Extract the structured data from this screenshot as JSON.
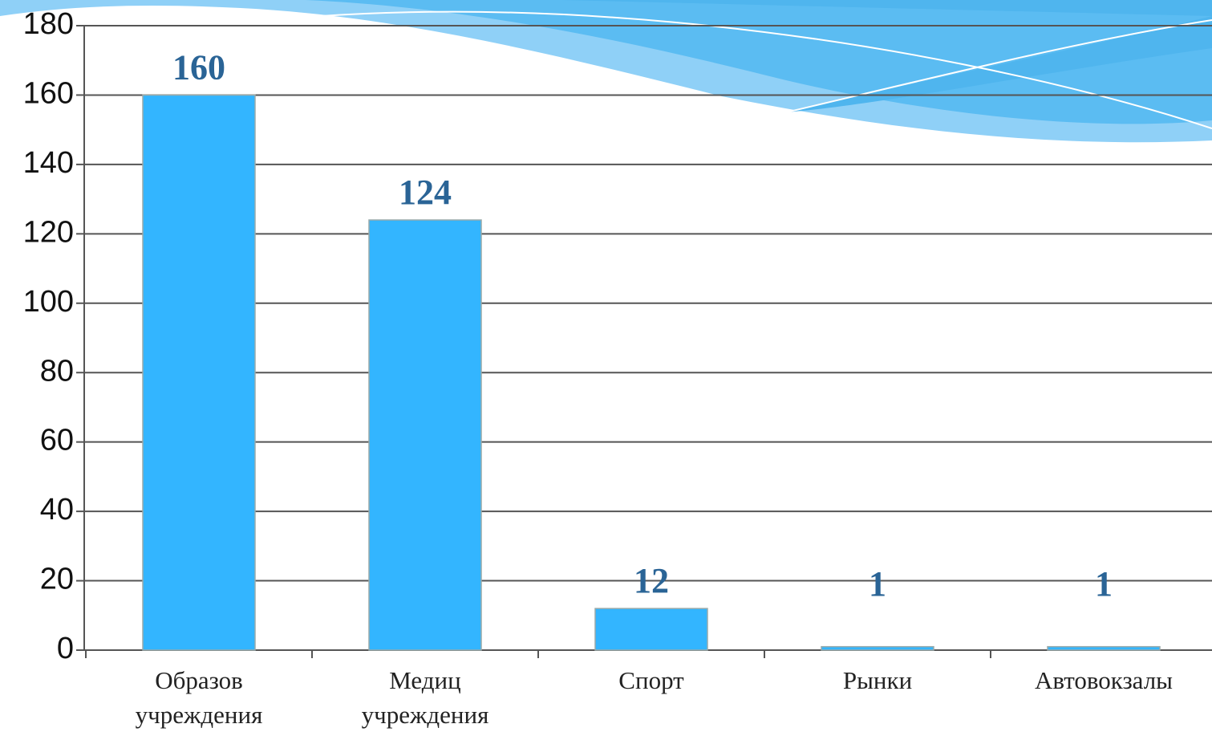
{
  "chart_data": {
    "type": "bar",
    "categories": [
      "Образов учреждения",
      "Медиц учреждения",
      "Спорт",
      "Рынки",
      "Автовокзалы"
    ],
    "values": [
      160,
      124,
      12,
      1,
      1
    ],
    "color": "#33b5ff",
    "ylim": [
      0,
      180
    ],
    "yticks": [
      0,
      20,
      40,
      60,
      80,
      100,
      120,
      140,
      160,
      180
    ],
    "grid": true
  }
}
